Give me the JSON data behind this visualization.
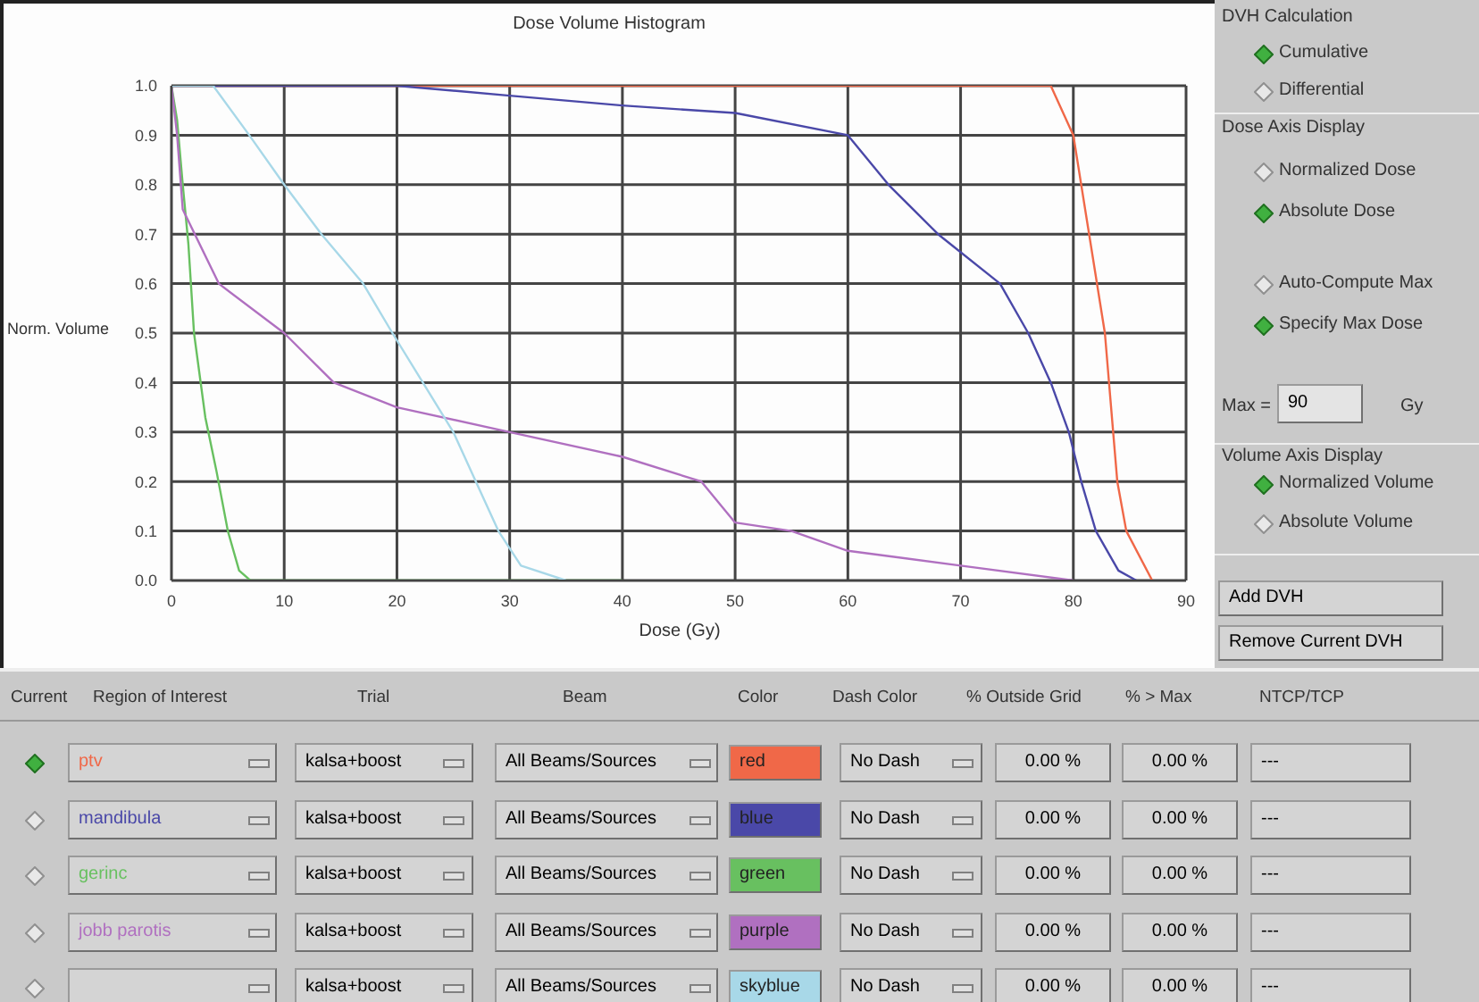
{
  "chart_data": {
    "type": "line",
    "title": "Dose Volume Histogram",
    "xlabel": "Dose (Gy)",
    "ylabel": "Norm. Volume",
    "xlim": [
      0,
      90
    ],
    "xticks": [
      0,
      10,
      20,
      30,
      40,
      50,
      60,
      70,
      80,
      90
    ],
    "ylim": [
      0,
      1
    ],
    "yticks": [
      {
        "value": 0,
        "label": "0.0"
      },
      0.1,
      0.2,
      0.3,
      0.4,
      0.5,
      0.6,
      0.7,
      0.8,
      0.9,
      {
        "value": 1,
        "label": "1.0"
      }
    ],
    "grid": true,
    "marker": "none",
    "line_style": "solid",
    "series": [
      {
        "name": "ptv",
        "color": "#f06848",
        "x": [
          0,
          78,
          80,
          82.8,
          83.9,
          84.7,
          87
        ],
        "values": [
          1,
          1,
          0.9,
          0.5,
          0.2,
          0.1,
          0
        ]
      },
      {
        "name": "mandibula",
        "color": "#4a48a8",
        "x": [
          0,
          20,
          30,
          40,
          50,
          60,
          63.6,
          68,
          73.5,
          76,
          78,
          79.6,
          80.7,
          82,
          84,
          85.6
        ],
        "values": [
          1,
          1,
          0.98,
          0.96,
          0.945,
          0.9,
          0.8,
          0.7,
          0.6,
          0.5,
          0.4,
          0.3,
          0.2,
          0.1,
          0.02,
          0
        ]
      },
      {
        "name": "gerinc",
        "color": "#68c060",
        "x": [
          0,
          0.5,
          1,
          1.5,
          2,
          3,
          4,
          5,
          6,
          7,
          40
        ],
        "values": [
          1,
          0.93,
          0.8,
          0.68,
          0.5,
          0.33,
          0.22,
          0.1,
          0.02,
          0,
          0
        ]
      },
      {
        "name": "jobb parotis",
        "color": "#b070c0",
        "x": [
          0,
          0.5,
          1,
          4.2,
          10,
          14.4,
          20,
          30,
          40,
          47,
          50,
          55,
          60,
          70,
          80
        ],
        "values": [
          1,
          0.9,
          0.75,
          0.6,
          0.5,
          0.4,
          0.35,
          0.3,
          0.25,
          0.2,
          0.117,
          0.1,
          0.06,
          0.03,
          0
        ]
      },
      {
        "name": null,
        "color": "#a8d8e8",
        "x": [
          0,
          3.7,
          6.9,
          10,
          13.3,
          17,
          19.6,
          22.3,
          25,
          27,
          29,
          31,
          35
        ],
        "values": [
          1,
          1,
          0.9,
          0.8,
          0.7,
          0.6,
          0.5,
          0.4,
          0.3,
          0.2,
          0.1,
          0.03,
          0
        ]
      }
    ],
    "annotations": [
      "DVH Calculation",
      "Cumulative",
      "Differential",
      "Dose Axis Display",
      "Normalized Dose",
      "Absolute Dose",
      "Auto-Compute Max",
      "Specify Max Dose",
      "Max =",
      "90",
      "Gy",
      "Volume Axis Display",
      "Normalized Volume",
      "Absolute Volume",
      "Add DVH",
      "Remove Current DVH",
      "Current",
      "Region of Interest",
      "Trial",
      "Beam",
      "Color",
      "Dash Color",
      "% Outside Grid",
      "% > Max",
      "NTCP/TCP",
      "kalsa+boost",
      "All Beams/Sources",
      "red",
      "No Dash",
      "0.00 %",
      "0.00 %",
      "---",
      "kalsa+boost",
      "All Beams/Sources",
      "blue",
      "No Dash",
      "0.00 %",
      "0.00 %",
      "---",
      "kalsa+boost",
      "All Beams/Sources",
      "green",
      "No Dash",
      "0.00 %",
      "0.00 %",
      "---",
      "kalsa+boost",
      "All Beams/Sources",
      "purple",
      "No Dash",
      "0.00 %",
      "0.00 %",
      "---",
      "kalsa+boost",
      "All Beams/Sources",
      "skyblue",
      "No Dash",
      "0.00 %",
      "0.00 %",
      "---"
    ]
  }
}
